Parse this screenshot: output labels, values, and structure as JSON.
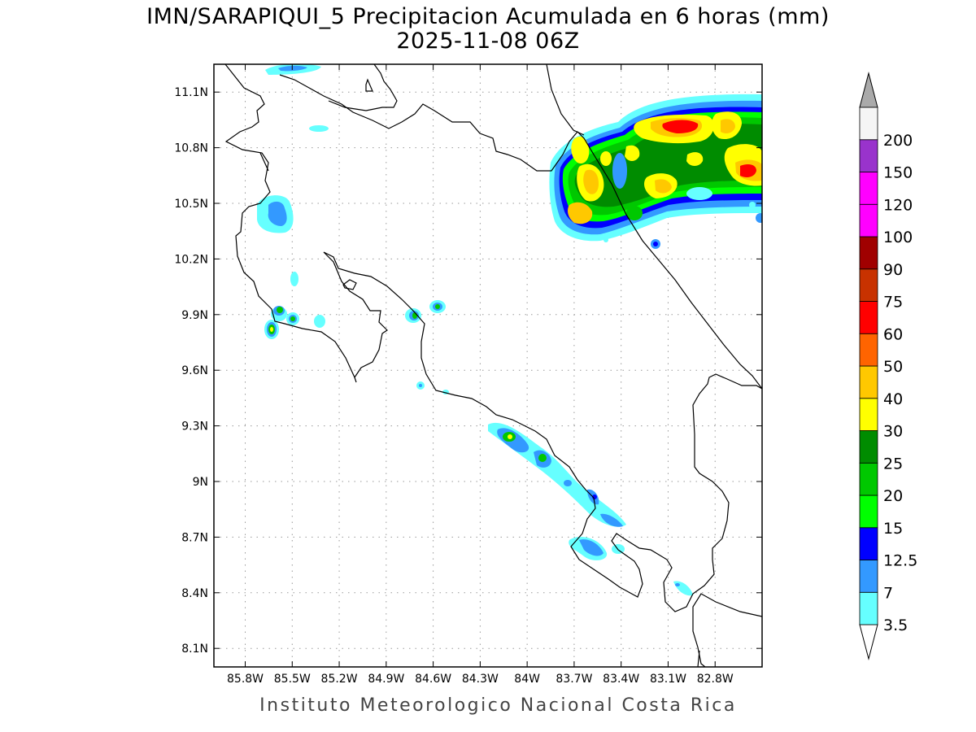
{
  "title": "IMN/SARAPIQUI_5 Precipitacion Acumulada en 6 horas (mm)",
  "subtitle": "2025-11-08 06Z",
  "footer": "Instituto Meteorologico Nacional Costa Rica",
  "map": {
    "lon_range": [
      -86.0,
      -82.5
    ],
    "lat_range": [
      8.0,
      11.25
    ],
    "grid_lines": "dotted",
    "x_ticks": [
      {
        "lon": -85.8,
        "label": "85.8W"
      },
      {
        "lon": -85.5,
        "label": "85.5W"
      },
      {
        "lon": -85.2,
        "label": "85.2W"
      },
      {
        "lon": -84.9,
        "label": "84.9W"
      },
      {
        "lon": -84.6,
        "label": "84.6W"
      },
      {
        "lon": -84.3,
        "label": "84.3W"
      },
      {
        "lon": -84.0,
        "label": "84W"
      },
      {
        "lon": -83.7,
        "label": "83.7W"
      },
      {
        "lon": -83.4,
        "label": "83.4W"
      },
      {
        "lon": -83.1,
        "label": "83.1W"
      },
      {
        "lon": -82.8,
        "label": "82.8W"
      }
    ],
    "y_ticks": [
      {
        "lat": 11.1,
        "label": "11.1N"
      },
      {
        "lat": 10.8,
        "label": "10.8N"
      },
      {
        "lat": 10.5,
        "label": "10.5N"
      },
      {
        "lat": 10.2,
        "label": "10.2N"
      },
      {
        "lat": 9.9,
        "label": "9.9N"
      },
      {
        "lat": 9.6,
        "label": "9.6N"
      },
      {
        "lat": 9.3,
        "label": "9.3N"
      },
      {
        "lat": 9.0,
        "label": "9N"
      },
      {
        "lat": 8.7,
        "label": "8.7N"
      },
      {
        "lat": 8.4,
        "label": "8.4N"
      },
      {
        "lat": 8.1,
        "label": "8.1N"
      }
    ]
  },
  "colorbar": {
    "levels": [
      {
        "label": "3.5",
        "color": "#66ffff"
      },
      {
        "label": "7",
        "color": "#3399ff"
      },
      {
        "label": "12.5",
        "color": "#0000ff"
      },
      {
        "label": "15",
        "color": "#00ff00"
      },
      {
        "label": "20",
        "color": "#00c800"
      },
      {
        "label": "25",
        "color": "#008c00"
      },
      {
        "label": "30",
        "color": "#ffff00"
      },
      {
        "label": "40",
        "color": "#ffc800"
      },
      {
        "label": "50",
        "color": "#ff6400"
      },
      {
        "label": "60",
        "color": "#ff0000"
      },
      {
        "label": "75",
        "color": "#c83200"
      },
      {
        "label": "90",
        "color": "#a00000"
      },
      {
        "label": "100",
        "color": "#ff00ff"
      },
      {
        "label": "120",
        "color": "#ff00ff"
      },
      {
        "label": "150",
        "color": "#9933cc"
      },
      {
        "label": "200",
        "color": "#f5f5f5"
      }
    ],
    "top_color": "#aaaaaa",
    "bottom_color": "#ffffff"
  }
}
